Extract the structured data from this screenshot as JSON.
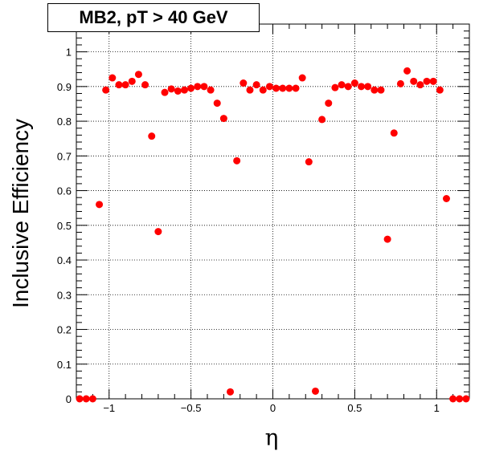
{
  "chart_data": {
    "type": "scatter",
    "title": "MB2, pT > 40 GeV",
    "xlabel": "η",
    "ylabel": "Inclusive Efficiency",
    "xlim": [
      -1.2,
      1.2
    ],
    "ylim": [
      0,
      1.08
    ],
    "grid": true,
    "marker_color": "#ff0000",
    "x_ticks": [
      -1,
      -0.5,
      0,
      0.5,
      1
    ],
    "x_tick_labels": [
      "−1",
      "−0.5",
      "0",
      "0.5",
      "1"
    ],
    "y_ticks": [
      0,
      0.1,
      0.2,
      0.3,
      0.4,
      0.5,
      0.6,
      0.7,
      0.8,
      0.9,
      1
    ],
    "y_tick_labels": [
      "0",
      "0.1",
      "0.2",
      "0.3",
      "0.4",
      "0.5",
      "0.6",
      "0.7",
      "0.8",
      "0.9",
      "1"
    ],
    "series": [
      {
        "x": [
          -1.18,
          -1.14,
          -1.1,
          -1.06,
          -1.02,
          -0.98,
          -0.94,
          -0.9,
          -0.86,
          -0.82,
          -0.78,
          -0.74,
          -0.7,
          -0.66,
          -0.62,
          -0.58,
          -0.54,
          -0.5,
          -0.46,
          -0.42,
          -0.38,
          -0.34,
          -0.3,
          -0.26,
          -0.22,
          -0.18,
          -0.14,
          -0.1,
          -0.06,
          -0.02,
          0.02,
          0.06,
          0.1,
          0.14,
          0.18,
          0.22,
          0.26,
          0.3,
          0.34,
          0.38,
          0.42,
          0.46,
          0.5,
          0.54,
          0.58,
          0.62,
          0.66,
          0.7,
          0.74,
          0.78,
          0.82,
          0.86,
          0.9,
          0.94,
          0.98,
          1.02,
          1.06,
          1.1,
          1.14,
          1.18
        ],
        "y": [
          0.0,
          0.0,
          0.0,
          0.56,
          0.89,
          0.925,
          0.905,
          0.905,
          0.915,
          0.935,
          0.905,
          0.757,
          0.482,
          0.883,
          0.893,
          0.887,
          0.89,
          0.895,
          0.9,
          0.9,
          0.89,
          0.852,
          0.808,
          0.02,
          0.686,
          0.91,
          0.89,
          0.905,
          0.89,
          0.9,
          0.895,
          0.895,
          0.895,
          0.895,
          0.925,
          0.683,
          0.022,
          0.805,
          0.852,
          0.897,
          0.905,
          0.9,
          0.91,
          0.9,
          0.9,
          0.89,
          0.89,
          0.46,
          0.766,
          0.908,
          0.945,
          0.915,
          0.905,
          0.915,
          0.915,
          0.89,
          0.577,
          0.0,
          0.0,
          0.0
        ]
      }
    ]
  }
}
